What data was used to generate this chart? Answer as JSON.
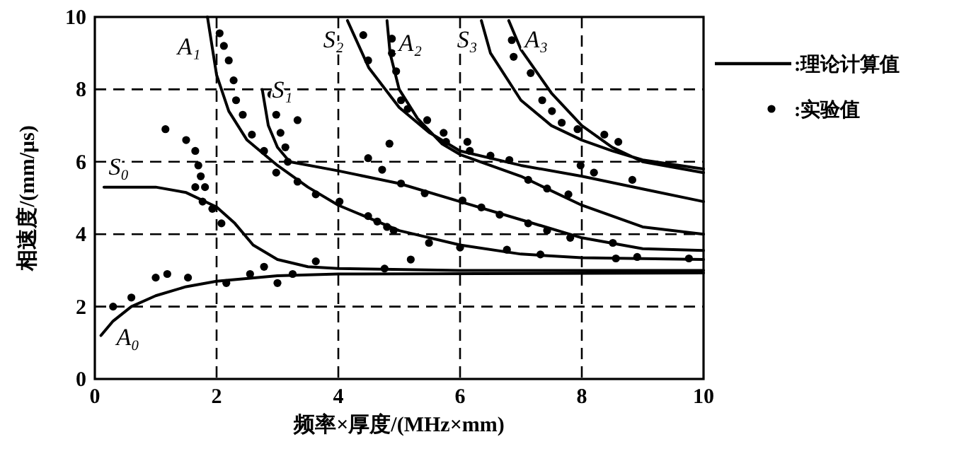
{
  "chart_data": {
    "type": "line",
    "xlabel": "频率×厚度/(MHz×mm)",
    "ylabel": "相速度/(mm/μs)",
    "xlim": [
      0,
      10
    ],
    "ylim": [
      0,
      10
    ],
    "xticks": [
      0,
      2,
      4,
      6,
      8,
      10
    ],
    "yticks": [
      0,
      2,
      4,
      6,
      8,
      10
    ],
    "grid": true,
    "legend": "right",
    "series": [
      {
        "name": ":理论计算值",
        "color": "#000000",
        "line_style": "solid",
        "x": [
          0.1,
          0.3,
          0.6,
          1,
          1.5,
          2,
          3,
          4,
          10,
          null,
          0.15,
          1,
          1.5,
          2,
          2.3,
          2.6,
          3,
          3.5,
          4,
          6,
          10,
          null,
          1.85,
          2,
          2.2,
          2.5,
          3,
          3.5,
          4,
          5,
          6,
          7,
          8,
          10,
          null,
          2.75,
          2.85,
          3,
          3.2,
          4,
          5,
          6,
          7,
          8,
          9,
          10,
          null,
          4.15,
          4.5,
          5,
          5.5,
          6,
          7,
          8,
          9,
          10,
          null,
          4.8,
          4.85,
          5,
          5.3,
          5.7,
          6,
          7,
          8,
          9,
          10,
          null,
          6.35,
          6.5,
          7,
          7.5,
          8,
          8.5,
          9,
          10,
          null,
          6.8,
          7,
          7.5,
          8,
          8.5,
          9,
          10
        ],
        "values": [
          1.2,
          1.6,
          2.0,
          2.3,
          2.55,
          2.7,
          2.85,
          2.9,
          2.93,
          null,
          5.3,
          5.3,
          5.15,
          4.75,
          4.3,
          3.7,
          3.3,
          3.1,
          3.05,
          3.0,
          3.0,
          null,
          10,
          8.4,
          7.4,
          6.6,
          5.9,
          5.3,
          4.8,
          4.1,
          3.7,
          3.45,
          3.35,
          3.3,
          null,
          8,
          7,
          6.4,
          6.0,
          5.75,
          5.4,
          4.9,
          4.4,
          3.9,
          3.6,
          3.55,
          null,
          9.9,
          8.6,
          7.5,
          6.8,
          6.3,
          5.9,
          5.6,
          5.25,
          4.9,
          null,
          9.9,
          9,
          8,
          7.2,
          6.5,
          6.2,
          5.6,
          4.8,
          4.2,
          4.0,
          null,
          9.9,
          9.0,
          7.7,
          7.0,
          6.6,
          6.3,
          6.05,
          5.8,
          null,
          9.9,
          9.1,
          7.9,
          7.0,
          6.4,
          6.0,
          5.7
        ]
      },
      {
        "name": ":实验值",
        "type": "scatter",
        "marker": "circle",
        "color": "#000000",
        "x": [
          1.16,
          1.5,
          1.65,
          1.7,
          1.74,
          1.65,
          1.81,
          1.77,
          1.93,
          2.08,
          2.05,
          2.12,
          2.2,
          2.28,
          2.32,
          2.43,
          2.58,
          2.78,
          2.98,
          3.33,
          3.63,
          4.02,
          4.49,
          4.8,
          2.9,
          2.98,
          3.05,
          3.13,
          3.33,
          3.17,
          0.3,
          0.6,
          1.0,
          1.19,
          1.53,
          2.16,
          2.55,
          2.78,
          3.0,
          3.25,
          3.63,
          4.41,
          4.49,
          4.88,
          4.88,
          4.95,
          5.03,
          5.14,
          5.46,
          5.73,
          5.77,
          6.12,
          6.16,
          6.5,
          6.81,
          4.84,
          6.85,
          6.88,
          7.16,
          7.35,
          7.51,
          7.67,
          7.93,
          8.37,
          8.6,
          7.98,
          8.2,
          8.83,
          7.12,
          7.43,
          7.78,
          4.49,
          4.72,
          5.03,
          5.42,
          6.04,
          6.35,
          6.65,
          7.12,
          7.43,
          7.81,
          8.51,
          4.64,
          4.91,
          5.49,
          6.0,
          6.77,
          7.32,
          8.56,
          8.91,
          9.76,
          4.76,
          5.19
        ],
        "values": [
          6.9,
          6.6,
          6.3,
          5.9,
          5.6,
          5.3,
          5.3,
          4.9,
          4.7,
          4.3,
          9.55,
          9.2,
          8.8,
          8.25,
          7.7,
          7.3,
          6.75,
          6.3,
          5.7,
          5.45,
          5.1,
          4.9,
          4.5,
          4.2,
          7.86,
          7.3,
          6.8,
          6.4,
          7.15,
          6.0,
          2.0,
          2.25,
          2.8,
          2.9,
          2.8,
          2.65,
          2.9,
          3.1,
          2.65,
          2.9,
          3.25,
          9.5,
          8.8,
          9.4,
          9.0,
          8.5,
          7.7,
          7.46,
          7.15,
          6.8,
          6.55,
          6.55,
          6.3,
          6.17,
          6.05,
          6.5,
          9.36,
          8.9,
          8.45,
          7.7,
          7.4,
          7.08,
          6.9,
          6.75,
          6.55,
          5.9,
          5.7,
          5.5,
          5.5,
          5.26,
          5.1,
          6.1,
          5.78,
          5.4,
          5.13,
          4.93,
          4.74,
          4.54,
          4.3,
          4.1,
          3.9,
          3.76,
          4.35,
          4.1,
          3.76,
          3.63,
          3.57,
          3.44,
          3.33,
          3.37,
          3.33,
          3.05,
          3.3
        ]
      }
    ],
    "annotations": [
      {
        "text": "A₀",
        "x": 0.45,
        "y": 1.8
      },
      {
        "text": "S₀",
        "x": 0.3,
        "y": 5.3
      },
      {
        "text": "A₁",
        "x": 1.9,
        "y": 9.2
      },
      {
        "text": "S₁",
        "x": 2.75,
        "y": 8
      },
      {
        "text": "S₂",
        "x": 4.25,
        "y": 9.4
      },
      {
        "text": "A₂",
        "x": 4.83,
        "y": 9.3
      },
      {
        "text": "S₃",
        "x": 6.45,
        "y": 9.4
      },
      {
        "text": "A₃",
        "x": 6.9,
        "y": 9.4
      }
    ]
  }
}
